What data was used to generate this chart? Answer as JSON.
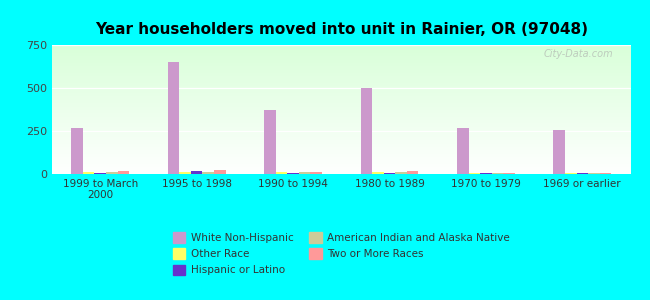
{
  "title": "Year householders moved into unit in Rainier, OR (97048)",
  "categories": [
    "1999 to March\n2000",
    "1995 to 1998",
    "1990 to 1994",
    "1980 to 1989",
    "1970 to 1979",
    "1969 or earlier"
  ],
  "series": {
    "White Non-Hispanic": [
      270,
      650,
      375,
      500,
      265,
      255
    ],
    "Other Race": [
      10,
      10,
      10,
      10,
      5,
      5
    ],
    "Hispanic or Latino": [
      5,
      20,
      5,
      5,
      5,
      5
    ],
    "American Indian and Alaska Native": [
      10,
      10,
      12,
      10,
      5,
      5
    ],
    "Two or More Races": [
      20,
      25,
      10,
      20,
      8,
      5
    ]
  },
  "colors": {
    "White Non-Hispanic": "#cc99cc",
    "Other Race": "#ffff66",
    "Hispanic or Latino": "#6633cc",
    "American Indian and Alaska Native": "#cccc99",
    "Two or More Races": "#ff9999"
  },
  "ylim": [
    0,
    750
  ],
  "yticks": [
    0,
    250,
    500,
    750
  ],
  "background_color": "#00ffff",
  "watermark": "City-Data.com",
  "bar_width": 0.12
}
